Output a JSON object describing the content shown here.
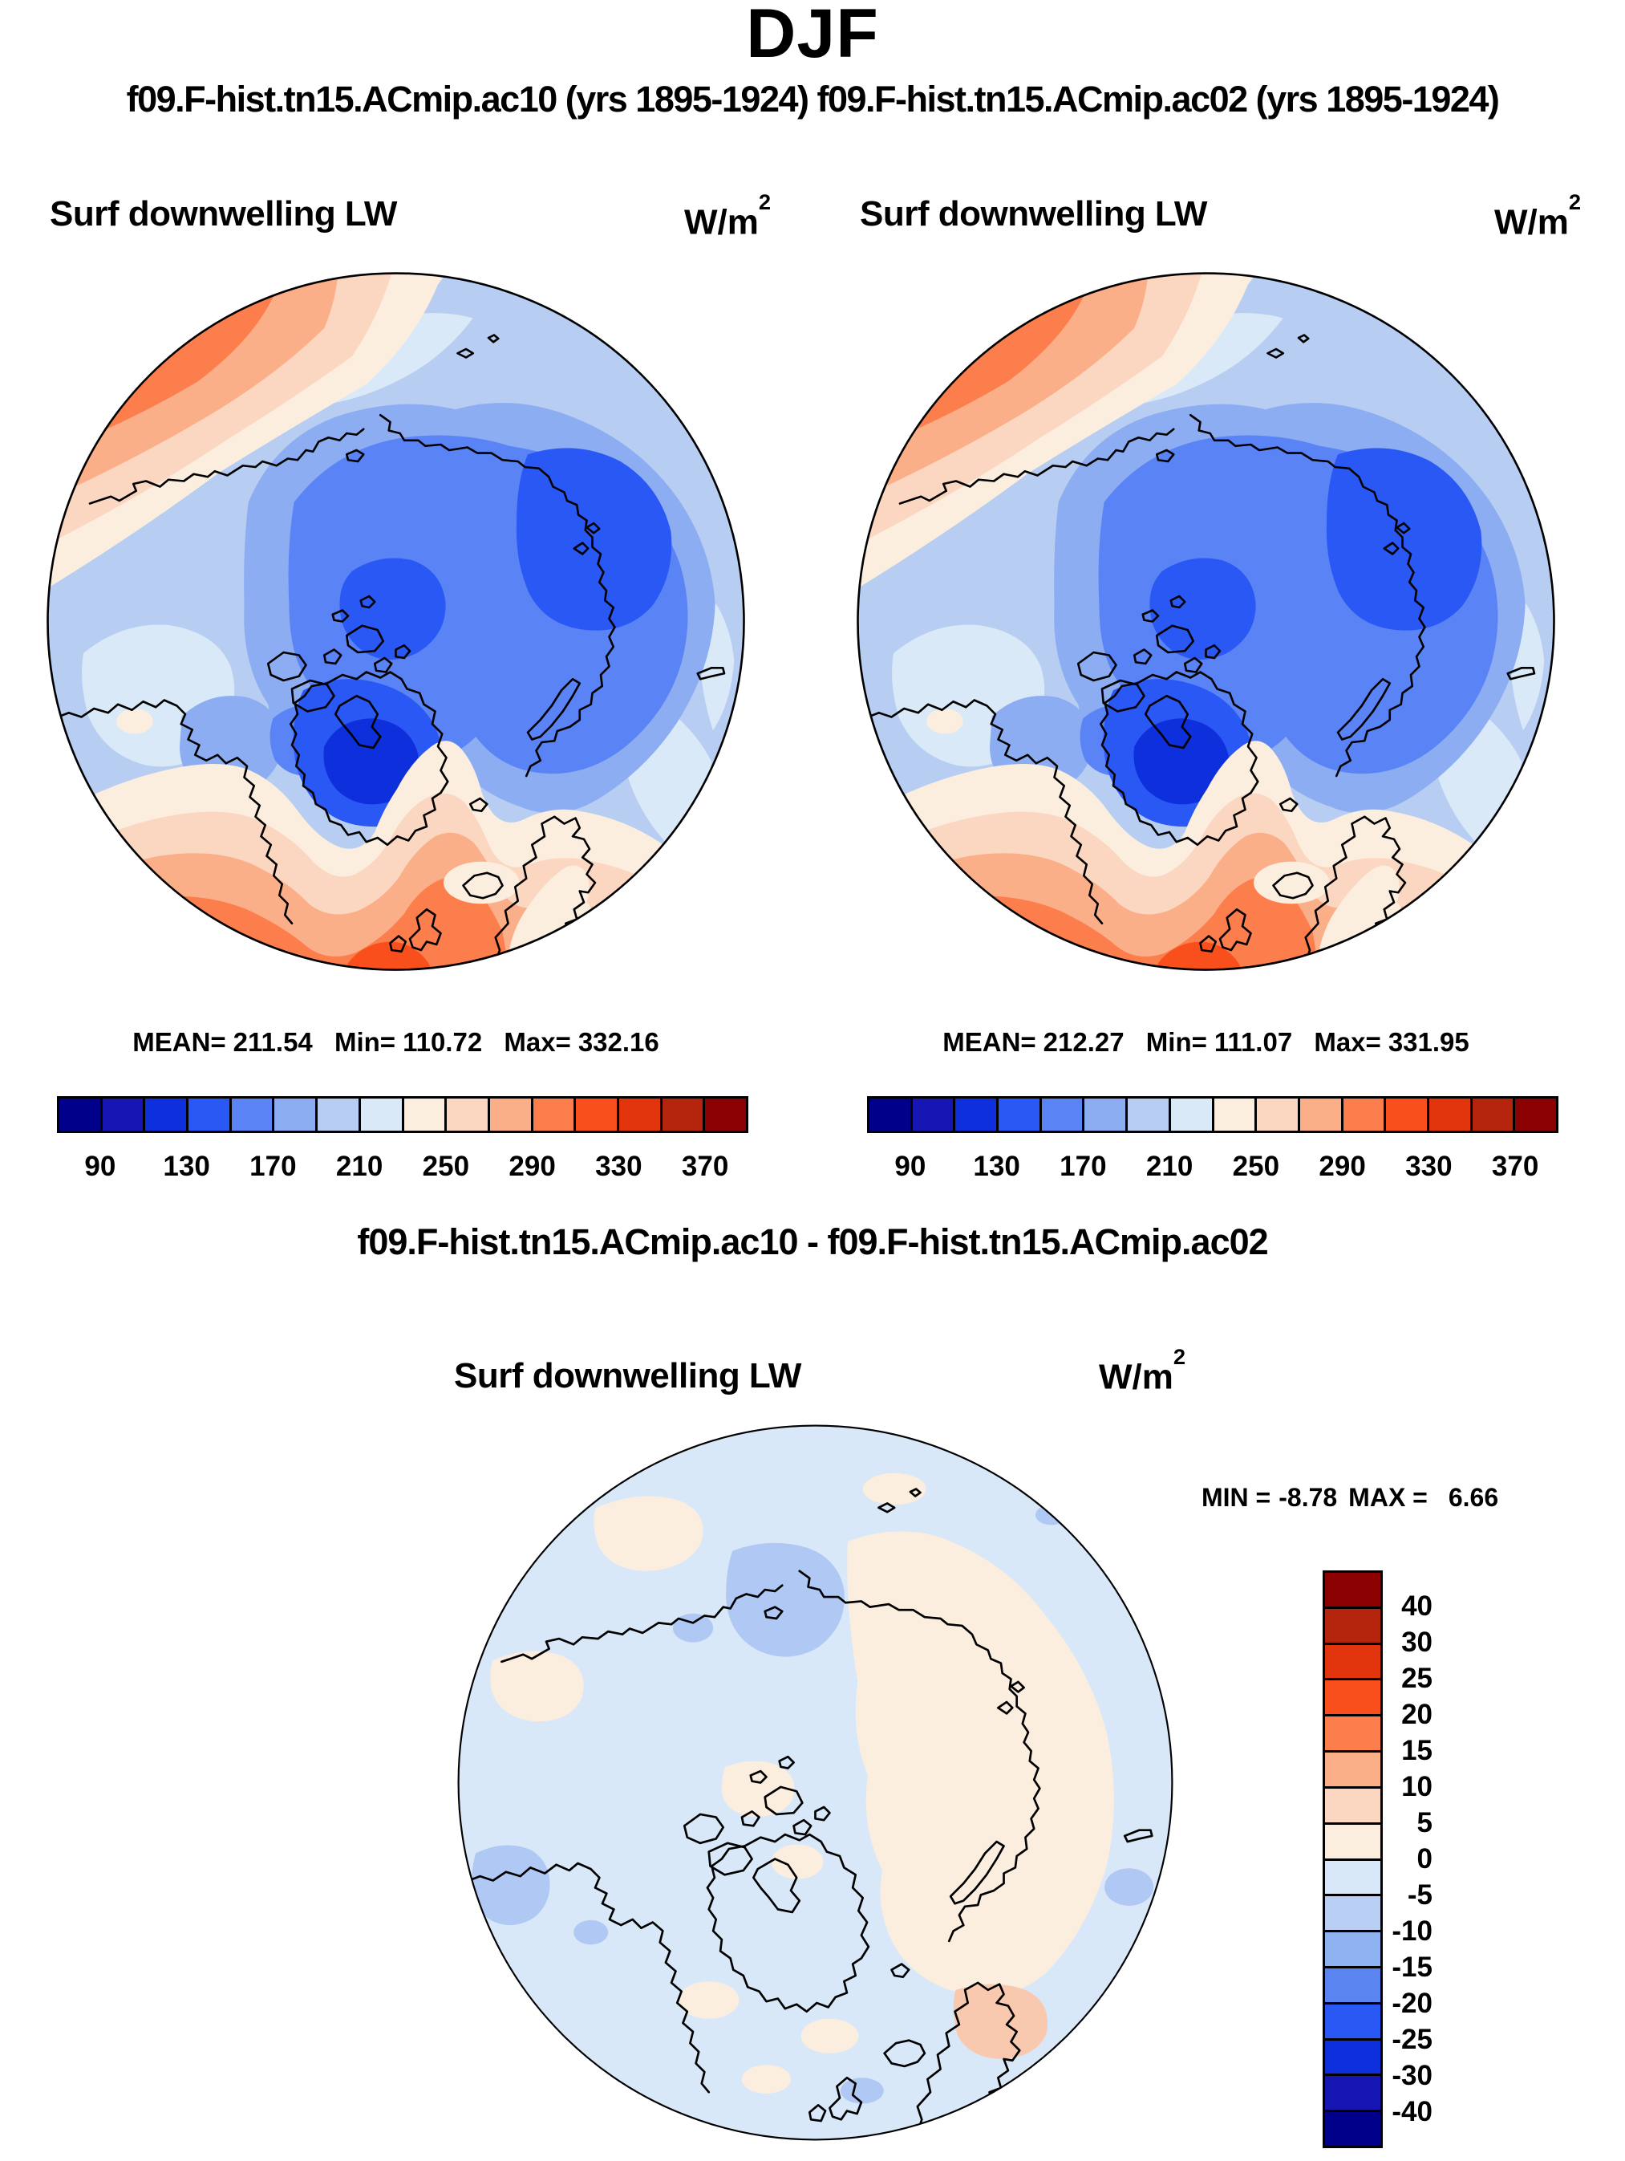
{
  "header": {
    "season_title": "DJF",
    "runs_line": "f09.F-hist.tn15.ACmip.ac10 (yrs 1895-1924) f09.F-hist.tn15.ACmip.ac02 (yrs 1895-1924)"
  },
  "units": {
    "base": "W/m",
    "exp": "2"
  },
  "panels": [
    {
      "run": "f09.F-hist.tn15.ACmip.ac10",
      "years": "yrs 1895-1924",
      "title": "Surf downwelling LW",
      "stats": {
        "mean_label": "MEAN=",
        "mean": "211.54",
        "min_label": "Min=",
        "min": "110.72",
        "max_label": "Max=",
        "max": "332.16"
      }
    },
    {
      "run": "f09.F-hist.tn15.ACmip.ac02",
      "years": "yrs 1895-1924",
      "title": "Surf downwelling LW",
      "stats": {
        "mean_label": "MEAN=",
        "mean": "212.27",
        "min_label": "Min=",
        "min": "111.07",
        "max_label": "Max=",
        "max": "331.95"
      }
    }
  ],
  "shared_colorbar": {
    "colors": [
      "#00008B",
      "#1516B4",
      "#0E2FDC",
      "#2A58F5",
      "#5A84F5",
      "#8CADF2",
      "#B7CEF2",
      "#DAE9F8",
      "#FCEEDF",
      "#FBD7C1",
      "#FBAF88",
      "#FB7E4C",
      "#F94F1C",
      "#E3350D",
      "#B5250D",
      "#8B0000"
    ],
    "ticks": [
      {
        "label": "90",
        "pos": 6.25
      },
      {
        "label": "130",
        "pos": 18.75
      },
      {
        "label": "170",
        "pos": 31.25
      },
      {
        "label": "210",
        "pos": 43.75
      },
      {
        "label": "250",
        "pos": 56.25
      },
      {
        "label": "290",
        "pos": 68.75
      },
      {
        "label": "330",
        "pos": 81.25
      },
      {
        "label": "370",
        "pos": 93.75
      }
    ]
  },
  "diff": {
    "heading": "f09.F-hist.tn15.ACmip.ac10 - f09.F-hist.tn15.ACmip.ac02",
    "title": "Surf downwelling LW",
    "stats": {
      "min_label": "MIN =",
      "min": "-8.78",
      "max_label": "MAX =",
      "max": "6.66"
    },
    "colorbar": {
      "colors": [
        "#8B0000",
        "#B5250D",
        "#E3350D",
        "#F94F1C",
        "#FB7E4C",
        "#FBAF88",
        "#FBD7C1",
        "#FCEEDF",
        "#D9E8F8",
        "#B9CFF4",
        "#8FB2F0",
        "#5A85F0",
        "#2A58F5",
        "#0E2FDC",
        "#1516B4",
        "#00008B"
      ],
      "ticks": [
        {
          "label": "40",
          "pos": 6.25
        },
        {
          "label": "30",
          "pos": 12.5
        },
        {
          "label": "25",
          "pos": 18.75
        },
        {
          "label": "20",
          "pos": 25
        },
        {
          "label": "15",
          "pos": 31.25
        },
        {
          "label": "10",
          "pos": 37.5
        },
        {
          "label": "5",
          "pos": 43.75
        },
        {
          "label": "0",
          "pos": 50
        },
        {
          "label": "-5",
          "pos": 56.25
        },
        {
          "label": "-10",
          "pos": 62.5
        },
        {
          "label": "-15",
          "pos": 68.75
        },
        {
          "label": "-20",
          "pos": 75
        },
        {
          "label": "-25",
          "pos": 81.25
        },
        {
          "label": "-30",
          "pos": 87.5
        },
        {
          "label": "-40",
          "pos": 93.75
        }
      ]
    }
  },
  "diff_map_colors": {
    "dbase": "#D9E8F8",
    "dplus": "#FCEEDF",
    "dminus": "#AFC8F4",
    "dplus2": "#F8C9AE"
  },
  "chart_data": [
    {
      "type": "heatmap",
      "subtype": "north-polar-stereographic-filled-contour-map",
      "title": "Surf downwelling LW",
      "season": "DJF",
      "run": "f09.F-hist.tn15.ACmip.ac10",
      "years": "1895-1924",
      "units": "W/m2",
      "stats": {
        "mean": 211.54,
        "min": 110.72,
        "max": 332.16
      },
      "contour_levels": [
        70,
        90,
        110,
        130,
        150,
        170,
        190,
        210,
        230,
        250,
        270,
        290,
        310,
        330,
        350,
        370,
        390
      ],
      "colorbar_ticks": [
        90,
        130,
        170,
        210,
        250,
        290,
        330,
        370
      ],
      "palette": "blue-to-red 16 classes",
      "legend_position": "below",
      "description": "Low downwelling LW (blue, ~130-210) over the central Arctic Ocean, Greenland and east Siberia; high values (orange-red, ~250-330) over the North Atlantic (bottom) and North Pacific (top-left) with coastlines overlaid."
    },
    {
      "type": "heatmap",
      "subtype": "north-polar-stereographic-filled-contour-map",
      "title": "Surf downwelling LW",
      "season": "DJF",
      "run": "f09.F-hist.tn15.ACmip.ac02",
      "years": "1895-1924",
      "units": "W/m2",
      "stats": {
        "mean": 212.27,
        "min": 111.07,
        "max": 331.95
      },
      "contour_levels": [
        70,
        90,
        110,
        130,
        150,
        170,
        190,
        210,
        230,
        250,
        270,
        290,
        310,
        330,
        350,
        370,
        390
      ],
      "colorbar_ticks": [
        90,
        130,
        170,
        210,
        250,
        290,
        330,
        370
      ],
      "palette": "blue-to-red 16 classes",
      "legend_position": "below",
      "description": "Nearly identical spatial pattern to the ac10 panel."
    },
    {
      "type": "heatmap",
      "subtype": "north-polar-stereographic-filled-contour-map",
      "title": "Surf downwelling LW",
      "season": "DJF",
      "run": "f09.F-hist.tn15.ACmip.ac10 - f09.F-hist.tn15.ACmip.ac02",
      "units": "W/m2",
      "stats": {
        "min": -8.78,
        "max": 6.66
      },
      "contour_levels": [
        -40,
        -30,
        -25,
        -20,
        -15,
        -10,
        -5,
        0,
        5,
        10,
        15,
        20,
        25,
        30,
        40
      ],
      "colorbar_ticks": [
        40,
        30,
        25,
        20,
        15,
        10,
        5,
        0,
        -5,
        -10,
        -15,
        -20,
        -25,
        -30,
        -40
      ],
      "legend_position": "right",
      "description": "Difference field mostly within -5..+5 (pale blue with cream patches); small -10..-5 anomalies near the Bering Strait, Baffin Bay and the left limb; one +5..+10 patch southeast of Scandinavia."
    }
  ]
}
